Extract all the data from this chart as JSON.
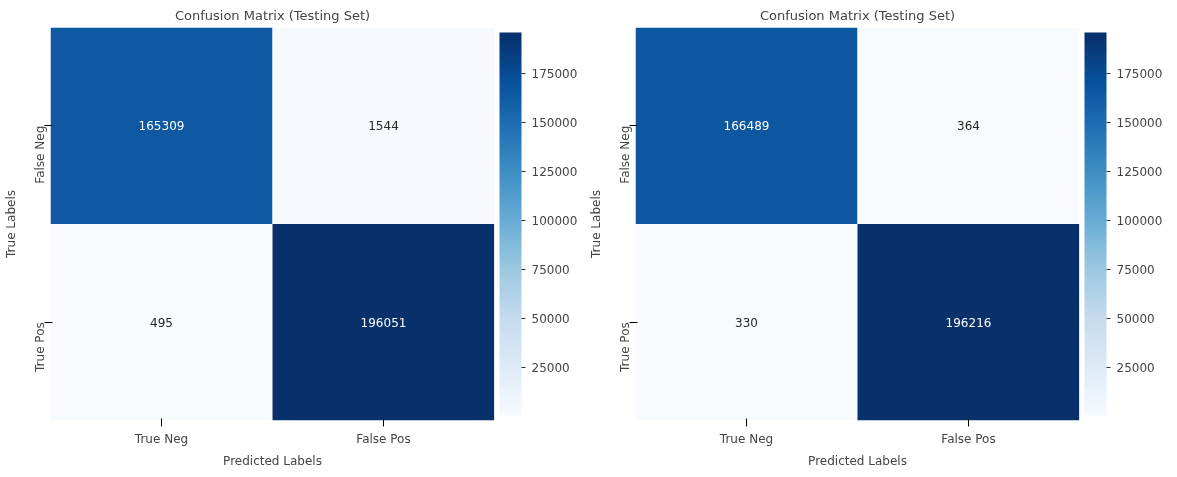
{
  "chart_data": [
    {
      "type": "heatmap",
      "title": "Confusion Matrix (Testing Set)",
      "xlabel": "Predicted Labels",
      "ylabel": "True Labels",
      "categories": [
        "True Neg",
        "False Pos"
      ],
      "y_categories": [
        "False Neg",
        "True Pos"
      ],
      "cells": [
        [
          165309,
          1544
        ],
        [
          495,
          196051
        ]
      ],
      "clim": [
        495,
        196051
      ],
      "cticks": [
        25000,
        50000,
        75000,
        100000,
        125000,
        150000,
        175000
      ],
      "data_labels": true
    },
    {
      "type": "heatmap",
      "title": "Confusion Matrix (Testing Set)",
      "xlabel": "Predicted Labels",
      "ylabel": "True Labels",
      "categories": [
        "True Neg",
        "False Pos"
      ],
      "y_categories": [
        "False Neg",
        "True Pos"
      ],
      "cells": [
        [
          166489,
          364
        ],
        [
          330,
          196216
        ]
      ],
      "clim": [
        330,
        196216
      ],
      "cticks": [
        25000,
        50000,
        75000,
        100000,
        125000,
        150000,
        175000
      ],
      "data_labels": true
    }
  ]
}
